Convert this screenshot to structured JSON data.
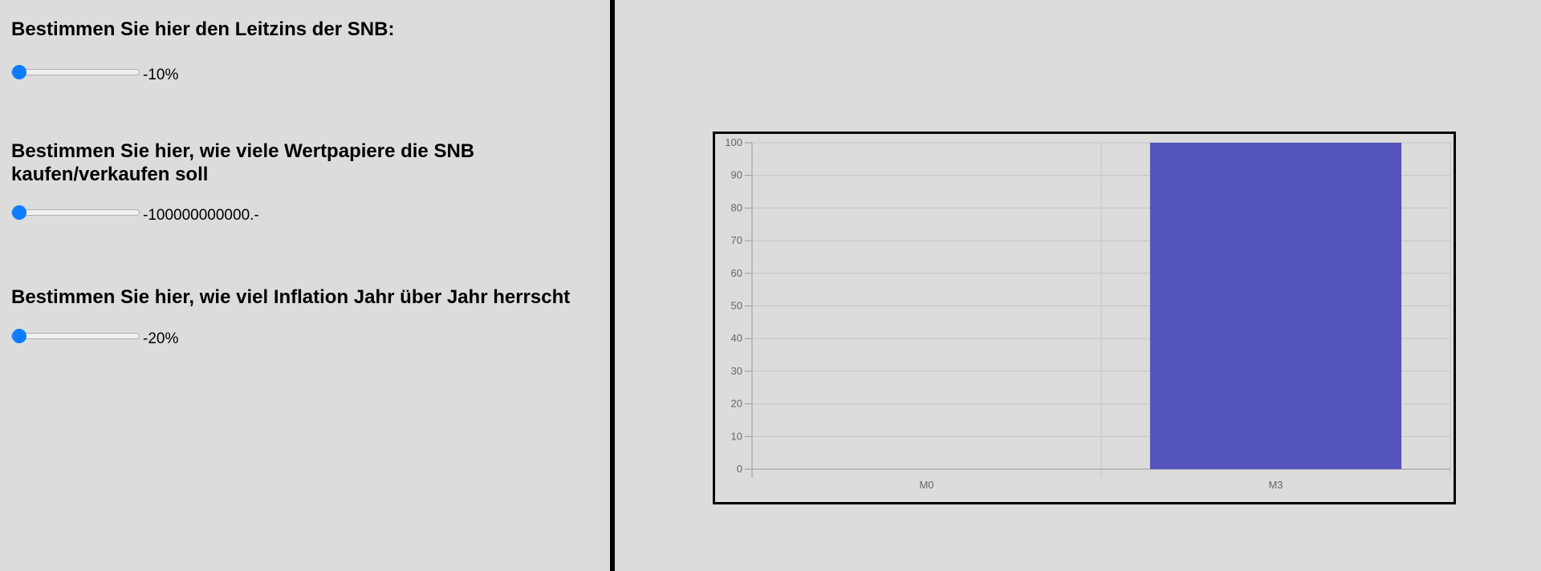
{
  "controls": [
    {
      "heading": "Bestimmen Sie hier den Leitzins der SNB:",
      "value_label": "-10%",
      "min": -10,
      "max": 10,
      "value": -10
    },
    {
      "heading": "Bestimmen Sie hier, wie viele Wertpapiere die SNB kaufen/verkaufen soll",
      "value_label": "-100000000000.-",
      "min": -100000000000,
      "max": 100000000000,
      "value": -100000000000
    },
    {
      "heading": "Bestimmen Sie hier, wie viel Inflation Jahr über Jahr herrscht",
      "value_label": "-20%",
      "min": -20,
      "max": 20,
      "value": -20
    }
  ],
  "colors": {
    "background": "#dcdcdc",
    "slider_thumb": "#0d7dff",
    "bar": "#5454bc",
    "grid": "#c4c4c4",
    "axis": "#999999",
    "tick_text": "#666666"
  },
  "chart_data": {
    "type": "bar",
    "categories": [
      "M0",
      "M3"
    ],
    "values": [
      0,
      100
    ],
    "ylim": [
      0,
      100
    ],
    "yticks": [
      "0",
      "10",
      "20",
      "30",
      "40",
      "50",
      "60",
      "70",
      "80",
      "90",
      "100"
    ],
    "grid": true,
    "title": "",
    "xlabel": "",
    "ylabel": ""
  }
}
